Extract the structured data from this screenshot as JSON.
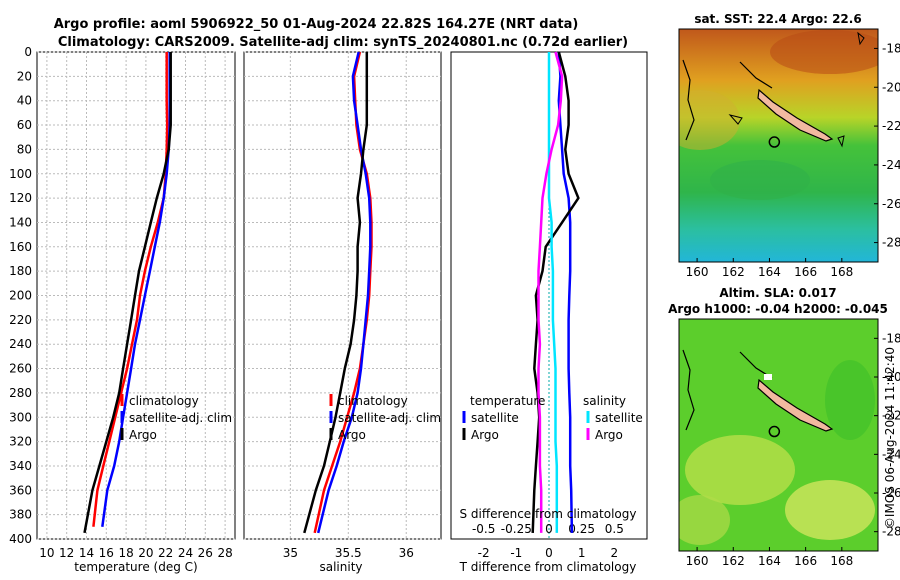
{
  "figure": {
    "title_line1": "Argo profile: aoml 5906922_50 01-Aug-2024 22.82S 164.27E (NRT data)",
    "title_line2": "Climatology: CARS2009. Satellite-adj clim: synTS_20240801.nc (0.72d earlier)",
    "sst_title": "sat. SST: 22.4 Argo: 22.6",
    "sla_title1": "Altim. SLA: 0.017",
    "sla_title2": "Argo h1000: -0.04 h2000: -0.045",
    "credit": "©IMOS 06-Aug-2024 11:42:40"
  },
  "colors": {
    "climatology": "#ff0000",
    "satellite": "#0000ff",
    "argo": "#000000",
    "salinity_satellite": "#00e5ff",
    "salinity_argo": "#ff00ff",
    "island": "#f2b9a0",
    "zero_line": "#00aaaa"
  },
  "chart_data": [
    {
      "type": "line",
      "id": "temperature",
      "xlabel": "temperature (deg C)",
      "ylabel": "",
      "xlim": [
        9,
        29
      ],
      "ylim": [
        0,
        400
      ],
      "y_reversed": true,
      "xticks": [
        10,
        12,
        14,
        16,
        18,
        20,
        22,
        24,
        26,
        28
      ],
      "yticks": [
        0,
        20,
        40,
        60,
        80,
        100,
        120,
        140,
        160,
        180,
        200,
        220,
        240,
        260,
        280,
        300,
        320,
        340,
        360,
        380,
        400
      ],
      "grid": true,
      "legend": [
        "climatology",
        "satellite-adj. clim",
        "Argo"
      ],
      "series": [
        {
          "name": "climatology",
          "color": "#ff0000",
          "x": [
            22.1,
            22.1,
            22.1,
            22.15,
            22.1,
            22.0,
            21.8,
            21.2,
            20.5,
            19.9,
            19.4,
            19.1,
            18.6,
            18.1,
            17.5,
            16.9,
            16.3,
            15.7,
            15.1,
            14.7
          ],
          "y": [
            0,
            20,
            40,
            60,
            80,
            100,
            120,
            140,
            160,
            180,
            200,
            220,
            240,
            260,
            280,
            300,
            320,
            340,
            360,
            390
          ]
        },
        {
          "name": "satellite-adj. clim",
          "color": "#0000ff",
          "x": [
            22.4,
            22.4,
            22.4,
            22.4,
            22.3,
            22.1,
            21.8,
            21.4,
            20.9,
            20.4,
            19.9,
            19.4,
            18.9,
            18.5,
            18.1,
            17.7,
            17.3,
            16.8,
            16.1,
            15.6
          ],
          "y": [
            0,
            20,
            40,
            60,
            80,
            100,
            120,
            140,
            160,
            180,
            200,
            220,
            240,
            260,
            280,
            300,
            320,
            340,
            360,
            390
          ]
        },
        {
          "name": "Argo",
          "color": "#000000",
          "x": [
            22.5,
            22.5,
            22.5,
            22.5,
            22.3,
            21.8,
            21.1,
            20.5,
            19.9,
            19.3,
            18.9,
            18.5,
            18.1,
            17.7,
            17.3,
            16.7,
            16.0,
            15.3,
            14.6,
            13.8
          ],
          "y": [
            0,
            20,
            40,
            60,
            80,
            100,
            120,
            140,
            160,
            180,
            200,
            220,
            240,
            260,
            280,
            300,
            320,
            340,
            360,
            395
          ]
        }
      ]
    },
    {
      "type": "line",
      "id": "salinity",
      "xlabel": "salinity",
      "xlim": [
        34.6,
        36.3
      ],
      "ylim": [
        0,
        400
      ],
      "y_reversed": true,
      "xticks": [
        35,
        35.5,
        36
      ],
      "grid": true,
      "legend": [
        "climatology",
        "satellite-adj. clim",
        "Argo"
      ],
      "series": [
        {
          "name": "climatology",
          "color": "#ff0000",
          "x": [
            35.6,
            35.55,
            35.56,
            35.57,
            35.6,
            35.66,
            35.69,
            35.7,
            35.7,
            35.69,
            35.68,
            35.66,
            35.63,
            35.6,
            35.55,
            35.49,
            35.43,
            35.36,
            35.29,
            35.21
          ],
          "y": [
            0,
            20,
            40,
            60,
            80,
            100,
            120,
            140,
            160,
            180,
            200,
            220,
            240,
            260,
            280,
            300,
            320,
            340,
            360,
            395
          ]
        },
        {
          "name": "satellite-adj. clim",
          "color": "#0000ff",
          "x": [
            35.59,
            35.54,
            35.55,
            35.58,
            35.61,
            35.65,
            35.68,
            35.69,
            35.69,
            35.68,
            35.67,
            35.65,
            35.63,
            35.61,
            35.58,
            35.53,
            35.46,
            35.4,
            35.33,
            35.24
          ],
          "y": [
            0,
            20,
            40,
            60,
            80,
            100,
            120,
            140,
            160,
            180,
            200,
            220,
            240,
            260,
            280,
            300,
            320,
            340,
            360,
            395
          ]
        },
        {
          "name": "Argo",
          "color": "#000000",
          "x": [
            35.66,
            35.66,
            35.66,
            35.66,
            35.63,
            35.61,
            35.58,
            35.6,
            35.58,
            35.58,
            35.57,
            35.55,
            35.52,
            35.47,
            35.43,
            35.39,
            35.34,
            35.29,
            35.22,
            35.12
          ],
          "y": [
            0,
            20,
            40,
            60,
            80,
            100,
            120,
            140,
            160,
            180,
            200,
            220,
            240,
            260,
            280,
            300,
            320,
            340,
            360,
            395
          ]
        }
      ]
    },
    {
      "type": "line",
      "id": "difference",
      "xlabel": "T difference from climatology",
      "xlabel_top": "S difference from climatology",
      "xlim": [
        -3,
        3
      ],
      "xlim_salinity": [
        -0.75,
        0.75
      ],
      "ylim": [
        0,
        400
      ],
      "y_reversed": true,
      "xticks": [
        -2,
        -1,
        0,
        1,
        2
      ],
      "xtick_labels": [
        "-2",
        "-1",
        "0",
        "1",
        "2"
      ],
      "s_xticks": [
        -0.5,
        -0.25,
        0,
        0.25,
        0.5
      ],
      "s_xtick_labels": [
        "-0.5",
        "-0.25",
        "0",
        "0.25",
        "0.5"
      ],
      "legend_groups": [
        "temperature",
        "salinity"
      ],
      "legend": [
        "satellite",
        "Argo",
        "satellite",
        "Argo"
      ],
      "series": [
        {
          "name": "temperature satellite",
          "color": "#0000ff",
          "x": [
            0.3,
            0.35,
            0.3,
            0.35,
            0.4,
            0.45,
            0.6,
            0.65,
            0.65,
            0.65,
            0.62,
            0.6,
            0.6,
            0.6,
            0.62,
            0.65,
            0.65,
            0.65,
            0.68,
            0.7
          ],
          "y": [
            0,
            20,
            40,
            60,
            80,
            100,
            120,
            140,
            160,
            180,
            200,
            220,
            240,
            260,
            280,
            300,
            320,
            340,
            360,
            395
          ]
        },
        {
          "name": "temperature Argo",
          "color": "#000000",
          "x": [
            0.3,
            0.5,
            0.6,
            0.6,
            0.5,
            0.6,
            0.9,
            0.4,
            -0.1,
            -0.2,
            -0.4,
            -0.35,
            -0.4,
            -0.45,
            -0.35,
            -0.3,
            -0.35,
            -0.4,
            -0.45,
            -0.5
          ],
          "y": [
            0,
            20,
            40,
            60,
            80,
            100,
            120,
            140,
            160,
            180,
            200,
            220,
            240,
            260,
            280,
            300,
            320,
            340,
            360,
            395
          ]
        },
        {
          "name": "salinity satellite",
          "color": "#00e5ff",
          "x": [
            0.0,
            0.0,
            0.0,
            0.0,
            0.0,
            0.0,
            0.0,
            0.02,
            0.02,
            0.03,
            0.03,
            0.03,
            0.04,
            0.05,
            0.05,
            0.05,
            0.05,
            0.06,
            0.06,
            0.06
          ],
          "y": [
            0,
            20,
            40,
            60,
            80,
            100,
            120,
            140,
            160,
            180,
            200,
            220,
            240,
            260,
            280,
            300,
            320,
            340,
            360,
            395
          ]
        },
        {
          "name": "salinity Argo",
          "color": "#ff00ff",
          "x": [
            0.05,
            0.1,
            0.09,
            0.07,
            0.02,
            -0.02,
            -0.05,
            -0.06,
            -0.07,
            -0.08,
            -0.08,
            -0.08,
            -0.07,
            -0.08,
            -0.08,
            -0.07,
            -0.07,
            -0.07,
            -0.06,
            -0.06
          ],
          "y": [
            0,
            20,
            40,
            60,
            80,
            100,
            120,
            140,
            160,
            180,
            200,
            220,
            240,
            260,
            280,
            300,
            320,
            340,
            360,
            395
          ]
        }
      ]
    },
    {
      "type": "heatmap",
      "id": "sst_map",
      "title": "sat. SST: 22.4 Argo: 22.6",
      "xlim": [
        159,
        170
      ],
      "ylim": [
        -29,
        -17
      ],
      "xticks": [
        160,
        162,
        164,
        166,
        168
      ],
      "yticks": [
        -18,
        -20,
        -22,
        -24,
        -26,
        -28
      ],
      "argo_position": [
        164.27,
        -22.82
      ]
    },
    {
      "type": "heatmap",
      "id": "sla_map",
      "title": "Altim. SLA: 0.017",
      "xlim": [
        159,
        170
      ],
      "ylim": [
        -29,
        -17
      ],
      "xticks": [
        160,
        162,
        164,
        166,
        168
      ],
      "yticks": [
        -18,
        -20,
        -22,
        -24,
        -26,
        -28
      ],
      "argo_position": [
        164.27,
        -22.82
      ]
    }
  ]
}
